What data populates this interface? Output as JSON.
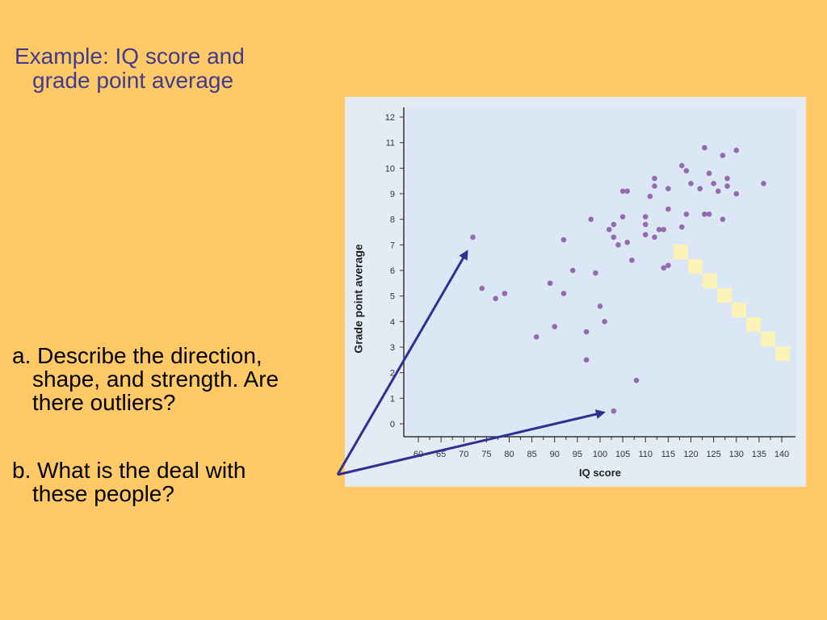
{
  "slide": {
    "title": [
      "Example: IQ score and",
      "grade point average"
    ],
    "question_a": [
      "a. Describe the direction,",
      "shape, and strength. Are",
      "there outliers?"
    ],
    "question_b": [
      "b. What is the deal with",
      "these people?"
    ]
  },
  "colors": {
    "background": "#ffc966",
    "title": "#3f3c8f",
    "point": "#8b5ca8",
    "arrow": "#2e3192",
    "plot_area": "#dbe7f5"
  },
  "chart_data": {
    "type": "scatter",
    "title": "",
    "xlabel": "IQ score",
    "ylabel": "Grade point average",
    "xlim": [
      60,
      140
    ],
    "ylim": [
      0,
      12
    ],
    "x_ticks": [
      60,
      65,
      70,
      75,
      80,
      85,
      90,
      95,
      100,
      105,
      110,
      115,
      120,
      125,
      130,
      135,
      140
    ],
    "y_ticks": [
      0,
      1,
      2,
      3,
      4,
      5,
      6,
      7,
      8,
      9,
      10,
      11,
      12
    ],
    "grid": false,
    "points": [
      {
        "x": 72,
        "y": 7.3
      },
      {
        "x": 74,
        "y": 5.3
      },
      {
        "x": 77,
        "y": 4.9
      },
      {
        "x": 79,
        "y": 5.1
      },
      {
        "x": 86,
        "y": 3.4
      },
      {
        "x": 89,
        "y": 5.5
      },
      {
        "x": 90,
        "y": 3.8
      },
      {
        "x": 92,
        "y": 5.1
      },
      {
        "x": 92,
        "y": 7.2
      },
      {
        "x": 94,
        "y": 6.0
      },
      {
        "x": 97,
        "y": 3.6
      },
      {
        "x": 97,
        "y": 2.5
      },
      {
        "x": 98,
        "y": 8.0
      },
      {
        "x": 99,
        "y": 5.9
      },
      {
        "x": 100,
        "y": 4.6
      },
      {
        "x": 101,
        "y": 4.0
      },
      {
        "x": 102,
        "y": 7.6
      },
      {
        "x": 103,
        "y": 0.5
      },
      {
        "x": 103,
        "y": 7.8
      },
      {
        "x": 103,
        "y": 7.3
      },
      {
        "x": 104,
        "y": 7.0
      },
      {
        "x": 105,
        "y": 9.1
      },
      {
        "x": 106,
        "y": 9.1
      },
      {
        "x": 105,
        "y": 8.1
      },
      {
        "x": 106,
        "y": 7.1
      },
      {
        "x": 107,
        "y": 6.4
      },
      {
        "x": 108,
        "y": 1.7
      },
      {
        "x": 110,
        "y": 7.4
      },
      {
        "x": 110,
        "y": 7.8
      },
      {
        "x": 110,
        "y": 8.1
      },
      {
        "x": 111,
        "y": 8.9
      },
      {
        "x": 112,
        "y": 9.6
      },
      {
        "x": 112,
        "y": 9.3
      },
      {
        "x": 112,
        "y": 7.3
      },
      {
        "x": 113,
        "y": 7.6
      },
      {
        "x": 114,
        "y": 6.1
      },
      {
        "x": 115,
        "y": 6.2
      },
      {
        "x": 114,
        "y": 7.6
      },
      {
        "x": 115,
        "y": 9.2
      },
      {
        "x": 115,
        "y": 8.4
      },
      {
        "x": 118,
        "y": 10.1
      },
      {
        "x": 118,
        "y": 7.7
      },
      {
        "x": 119,
        "y": 8.2
      },
      {
        "x": 119,
        "y": 9.9
      },
      {
        "x": 120,
        "y": 9.4
      },
      {
        "x": 122,
        "y": 9.2
      },
      {
        "x": 123,
        "y": 10.8
      },
      {
        "x": 123,
        "y": 8.2
      },
      {
        "x": 124,
        "y": 9.8
      },
      {
        "x": 124,
        "y": 8.2
      },
      {
        "x": 125,
        "y": 9.4
      },
      {
        "x": 126,
        "y": 9.1
      },
      {
        "x": 127,
        "y": 8.0
      },
      {
        "x": 127,
        "y": 10.5
      },
      {
        "x": 128,
        "y": 9.3
      },
      {
        "x": 128,
        "y": 9.6
      },
      {
        "x": 130,
        "y": 10.7
      },
      {
        "x": 130,
        "y": 9.0
      },
      {
        "x": 136,
        "y": 9.4
      }
    ]
  }
}
